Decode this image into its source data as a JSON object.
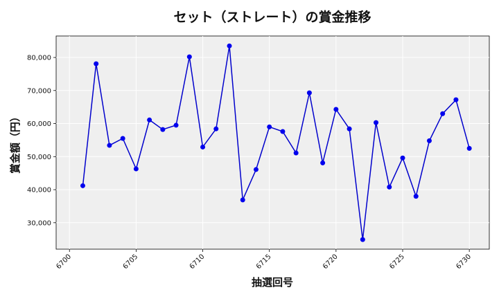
{
  "chart_data": {
    "type": "line",
    "title": "セット（ストレート）の賞金推移",
    "xlabel": "抽選回号",
    "ylabel": "賞金額（円）",
    "xlim": [
      6699.0,
      6731.5
    ],
    "ylim": [
      22000,
      86500
    ],
    "x_ticks": [
      6700,
      6705,
      6710,
      6715,
      6720,
      6725,
      6730
    ],
    "y_ticks": [
      30000,
      40000,
      50000,
      60000,
      70000,
      80000
    ],
    "y_tick_labels": [
      "30,000",
      "40,000",
      "50,000",
      "60,000",
      "70,000",
      "80,000"
    ],
    "grid": true,
    "colors": {
      "line": "#0000cc",
      "marker": "#0000ee",
      "plot_bg": "#efefef",
      "grid": "#ffffff"
    },
    "series": [
      {
        "x": [
          6701,
          6702,
          6703,
          6704,
          6705,
          6706,
          6707,
          6708,
          6709,
          6710,
          6711,
          6712,
          6713,
          6714,
          6715,
          6716,
          6717,
          6718,
          6719,
          6720,
          6721,
          6722,
          6723,
          6724,
          6725,
          6726,
          6727,
          6728,
          6729,
          6730
        ],
        "values": [
          41200,
          78100,
          53400,
          55500,
          46300,
          61100,
          58200,
          59500,
          80200,
          52900,
          58400,
          83500,
          36900,
          46100,
          59000,
          57600,
          51100,
          69300,
          48100,
          64300,
          58400,
          24900,
          60300,
          40800,
          49600,
          38000,
          54800,
          63000,
          67200,
          52500
        ]
      }
    ]
  }
}
